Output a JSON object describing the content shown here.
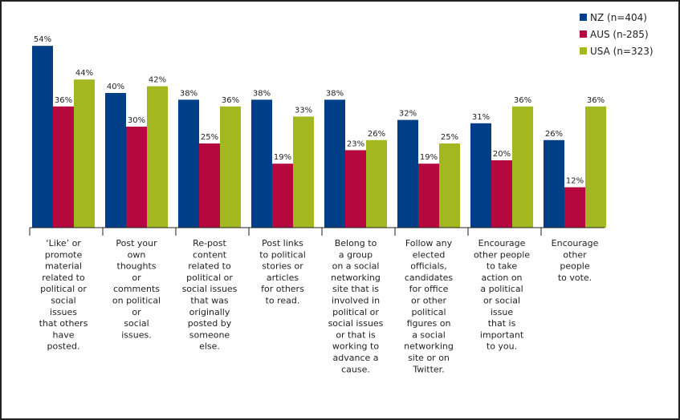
{
  "chart_data": {
    "type": "bar",
    "categories": [
      [
        "‘Like’ or",
        "promote",
        "material",
        "related to",
        "political or",
        "social",
        "issues",
        "that others",
        "have",
        "posted."
      ],
      [
        "Post your",
        "own",
        "thoughts",
        "or",
        "comments",
        "on political",
        "or",
        "social",
        "issues."
      ],
      [
        "Re-post",
        "content",
        "related to",
        "political or",
        "social issues",
        "that was",
        "originally",
        "posted by",
        "someone",
        "else."
      ],
      [
        "Post links",
        "to political",
        "stories or",
        "articles",
        "for others",
        "to read."
      ],
      [
        "Belong to",
        "a group",
        "on a social",
        "networking",
        "site that is",
        "involved in",
        "political or",
        "social issues",
        "or that is",
        "working to",
        "advance a",
        "cause."
      ],
      [
        "Follow any",
        "elected",
        "officials,",
        "candidates",
        "for office",
        "or other",
        "political",
        "figures on",
        "a social",
        "networking",
        "site or on",
        "Twitter."
      ],
      [
        "Encourage",
        "other people",
        "to take",
        "action on",
        "a political",
        "or social",
        "issue",
        "that is",
        "important",
        "to you."
      ],
      [
        "Encourage",
        "other",
        "people",
        "to vote."
      ]
    ],
    "series": [
      {
        "name": "NZ (n=404)",
        "color": "#003f87",
        "values": [
          54,
          40,
          38,
          38,
          38,
          32,
          31,
          26
        ]
      },
      {
        "name": "AUS (n-285)",
        "color": "#b5083f",
        "values": [
          36,
          30,
          25,
          19,
          23,
          19,
          20,
          12
        ]
      },
      {
        "name": "USA (n=323)",
        "color": "#a3b820",
        "values": [
          44,
          42,
          36,
          33,
          26,
          25,
          36,
          36
        ]
      }
    ],
    "value_suffix": "%",
    "ylim": [
      0,
      58
    ],
    "legend": "top-right",
    "grid": false
  }
}
